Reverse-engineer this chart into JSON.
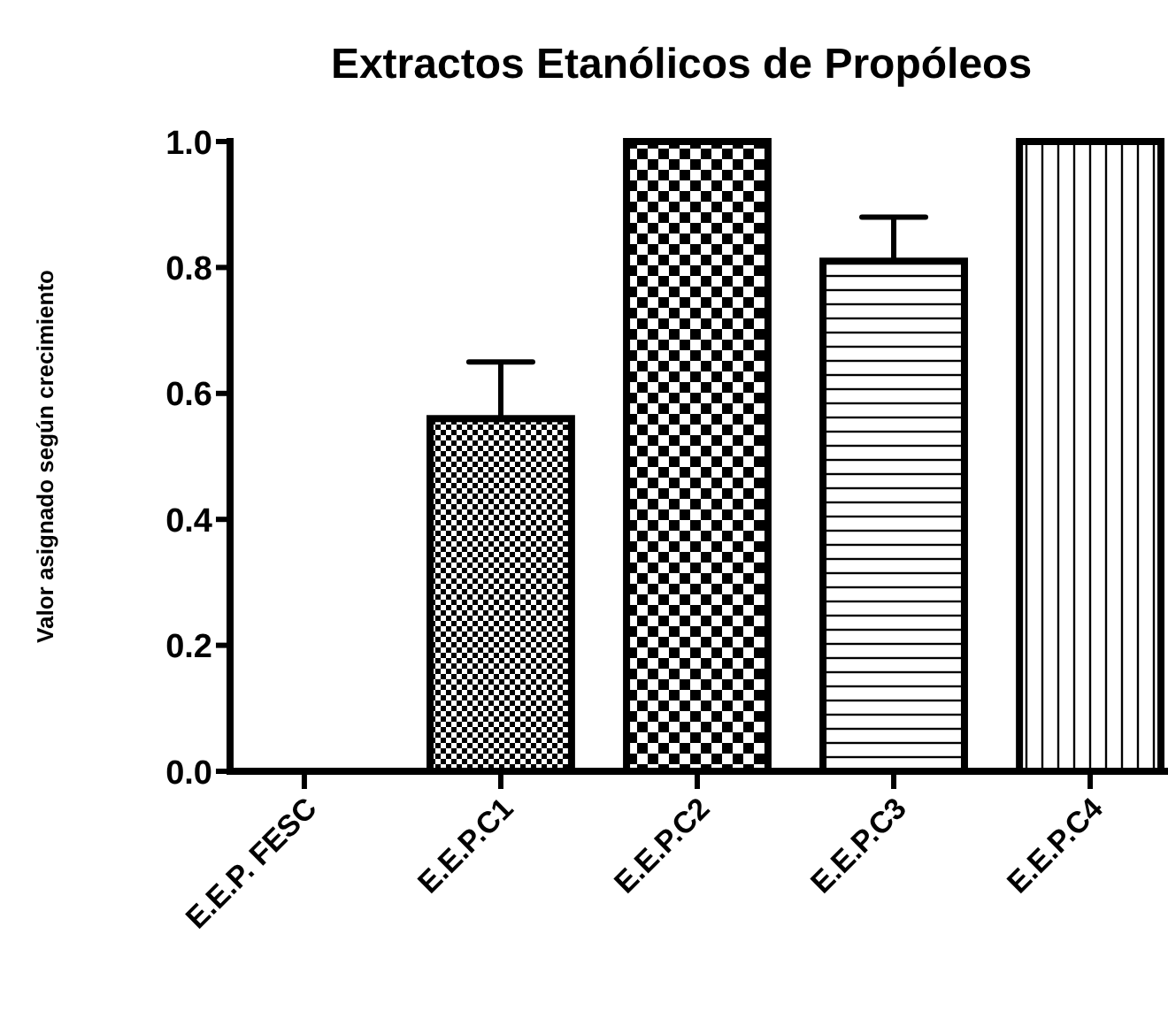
{
  "chart_data": {
    "type": "bar",
    "title": "Extractos Etanólicos de Propóleos",
    "ylabel": "Valor asignado según crecimiento",
    "categories": [
      "E.E.P. FESC",
      "E.E.P.C1",
      "E.E.P.C2",
      "E.E.P.C3",
      "E.E.P.C4"
    ],
    "values": [
      0,
      0.56,
      1.0,
      0.81,
      1.0
    ],
    "errors": [
      null,
      0.09,
      null,
      0.07,
      null
    ],
    "color": "#000000",
    "ylim": [
      0,
      1.0
    ],
    "yticks": [
      {
        "value": 0,
        "label": "0.0"
      },
      0.2,
      0.4,
      0.6,
      0.8,
      {
        "value": 1,
        "label": "1.0"
      }
    ],
    "grid": false
  }
}
